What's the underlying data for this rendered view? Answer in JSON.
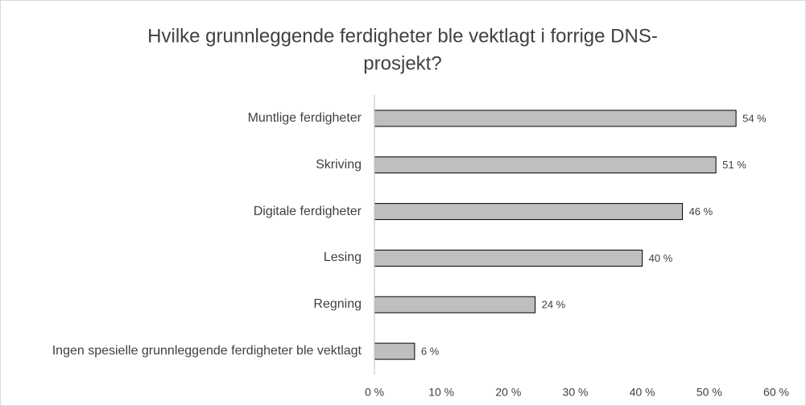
{
  "chart_data": {
    "type": "bar",
    "orientation": "horizontal",
    "title_lines": [
      "Hvilke grunnleggende ferdigheter ble vektlagt i forrige DNS-",
      "prosjekt?"
    ],
    "categories": [
      "Muntlige ferdigheter",
      "Skriving",
      "Digitale ferdigheter",
      "Lesing",
      "Regning",
      "Ingen spesielle grunnleggende ferdigheter ble vektlagt"
    ],
    "values": [
      54,
      51,
      46,
      40,
      24,
      6
    ],
    "value_labels": [
      "54 %",
      "51 %",
      "46 %",
      "40 %",
      "24 %",
      "6 %"
    ],
    "color": "#bfbfbf",
    "xlim": [
      0,
      60
    ],
    "xticks": [
      {
        "value": 0,
        "label": "0 %"
      },
      {
        "value": 10,
        "label": "10 %"
      },
      {
        "value": 20,
        "label": "20 %"
      },
      {
        "value": 30,
        "label": "30 %"
      },
      {
        "value": 40,
        "label": "40 %"
      },
      {
        "value": 50,
        "label": "50 %"
      },
      {
        "value": 60,
        "label": "60 %"
      }
    ],
    "grid": false
  }
}
